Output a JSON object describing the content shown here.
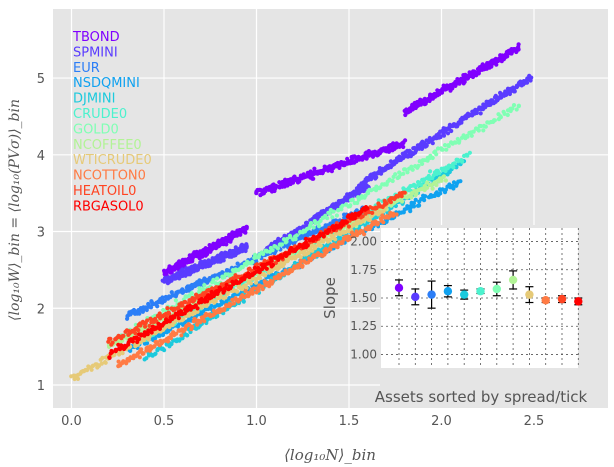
{
  "chart_data": [
    {
      "type": "scatter",
      "title": "",
      "xlabel": "⟨log₁₀N⟩_bin",
      "ylabel": "⟨log₁₀W⟩_bin = ⟨log₁₀(PVσ)⟩_bin",
      "xlim": [
        -0.1,
        2.9
      ],
      "ylim": [
        0.7,
        5.9
      ],
      "xticks": [
        0.0,
        0.5,
        1.0,
        1.5,
        2.0,
        2.5
      ],
      "xtick_labels": [
        "0.0",
        "0.5",
        "1.0",
        "1.5",
        "2.0",
        "2.5"
      ],
      "yticks": [
        1,
        2,
        3,
        4,
        5
      ],
      "ytick_labels": [
        "1",
        "2",
        "3",
        "4",
        "5"
      ],
      "grid": true,
      "legend_position": "top-left",
      "series": [
        {
          "name": "TBOND",
          "color": "#8000ff",
          "segments": [
            {
              "x": [
                0.5,
                0.95
              ],
              "y": [
                2.45,
                3.05
              ]
            },
            {
              "x": [
                1.0,
                1.8
              ],
              "y": [
                3.5,
                4.15
              ]
            },
            {
              "x": [
                1.8,
                2.42
              ],
              "y": [
                4.55,
                5.4
              ]
            }
          ]
        },
        {
          "name": "SPMINI",
          "color": "#5a3cff",
          "segments": [
            {
              "x": [
                0.5,
                0.95
              ],
              "y": [
                2.35,
                2.8
              ]
            },
            {
              "x": [
                1.05,
                1.6
              ],
              "y": [
                2.75,
                3.6
              ]
            },
            {
              "x": [
                1.55,
                2.48
              ],
              "y": [
                3.6,
                5.0
              ]
            }
          ]
        },
        {
          "name": "EUR",
          "color": "#2c7ef7",
          "segments": [
            {
              "x": [
                0.3,
                1.6
              ],
              "y": [
                1.9,
                3.3
              ]
            }
          ]
        },
        {
          "name": "NSDQMINI",
          "color": "#10a2f0",
          "segments": [
            {
              "x": [
                0.3,
                2.1
              ],
              "y": [
                1.45,
                3.65
              ]
            }
          ]
        },
        {
          "name": "DJMINI",
          "color": "#1ccadd",
          "segments": [
            {
              "x": [
                0.4,
                2.12
              ],
              "y": [
                1.35,
                3.9
              ]
            }
          ]
        },
        {
          "name": "CRUDE0",
          "color": "#4cf2ce",
          "segments": [
            {
              "x": [
                0.35,
                2.15
              ],
              "y": [
                1.55,
                4.0
              ]
            }
          ]
        },
        {
          "name": "GOLD0",
          "color": "#80ffb4",
          "segments": [
            {
              "x": [
                0.25,
                2.42
              ],
              "y": [
                1.6,
                4.65
              ]
            }
          ]
        },
        {
          "name": "NCOFFEE0",
          "color": "#b2f396",
          "segments": [
            {
              "x": [
                0.2,
                2.02
              ],
              "y": [
                1.5,
                3.7
              ]
            }
          ]
        },
        {
          "name": "WTICRUDE0",
          "color": "#e6ca78",
          "segments": [
            {
              "x": [
                0.0,
                1.7
              ],
              "y": [
                1.1,
                3.3
              ]
            }
          ]
        },
        {
          "name": "NCOTTON0",
          "color": "#ff7b44",
          "segments": [
            {
              "x": [
                0.25,
                1.75
              ],
              "y": [
                1.25,
                3.25
              ]
            }
          ]
        },
        {
          "name": "HEATOIL0",
          "color": "#ff4422",
          "segments": [
            {
              "x": [
                0.2,
                1.8
              ],
              "y": [
                1.55,
                3.5
              ]
            }
          ]
        },
        {
          "name": "RBGASOL0",
          "color": "#ff0000",
          "segments": [
            {
              "x": [
                0.2,
                1.6
              ],
              "y": [
                1.4,
                3.3
              ]
            }
          ]
        }
      ]
    },
    {
      "type": "scatter",
      "title": "",
      "inset": true,
      "xlabel": "Assets sorted by spread/tick",
      "ylabel": "Slope",
      "ylim": [
        0.88,
        2.12
      ],
      "yticks": [
        1.0,
        1.25,
        1.5,
        1.75,
        2.0
      ],
      "ytick_labels": [
        "1.00",
        "1.25",
        "1.50",
        "1.75",
        "2.00"
      ],
      "grid": true,
      "categories": [
        "TBOND",
        "SPMINI",
        "EUR",
        "NSDQMINI",
        "DJMINI",
        "CRUDE0",
        "GOLD0",
        "NCOFFEE0",
        "WTICRUDE0",
        "NCOTTON0",
        "HEATOIL0",
        "RBGASOL0"
      ],
      "values": [
        1.59,
        1.51,
        1.53,
        1.56,
        1.53,
        1.56,
        1.58,
        1.66,
        1.53,
        1.48,
        1.49,
        1.47
      ],
      "errors": [
        0.07,
        0.07,
        0.12,
        0.05,
        0.04,
        0.02,
        0.06,
        0.08,
        0.07,
        0.02,
        0.03,
        0.03
      ],
      "colors": [
        "#8000ff",
        "#5a3cff",
        "#2c7ef7",
        "#10a2f0",
        "#1ccadd",
        "#4cf2ce",
        "#80ffb4",
        "#b2f396",
        "#e6ca78",
        "#ff7b44",
        "#ff4422",
        "#ff0000"
      ]
    }
  ]
}
